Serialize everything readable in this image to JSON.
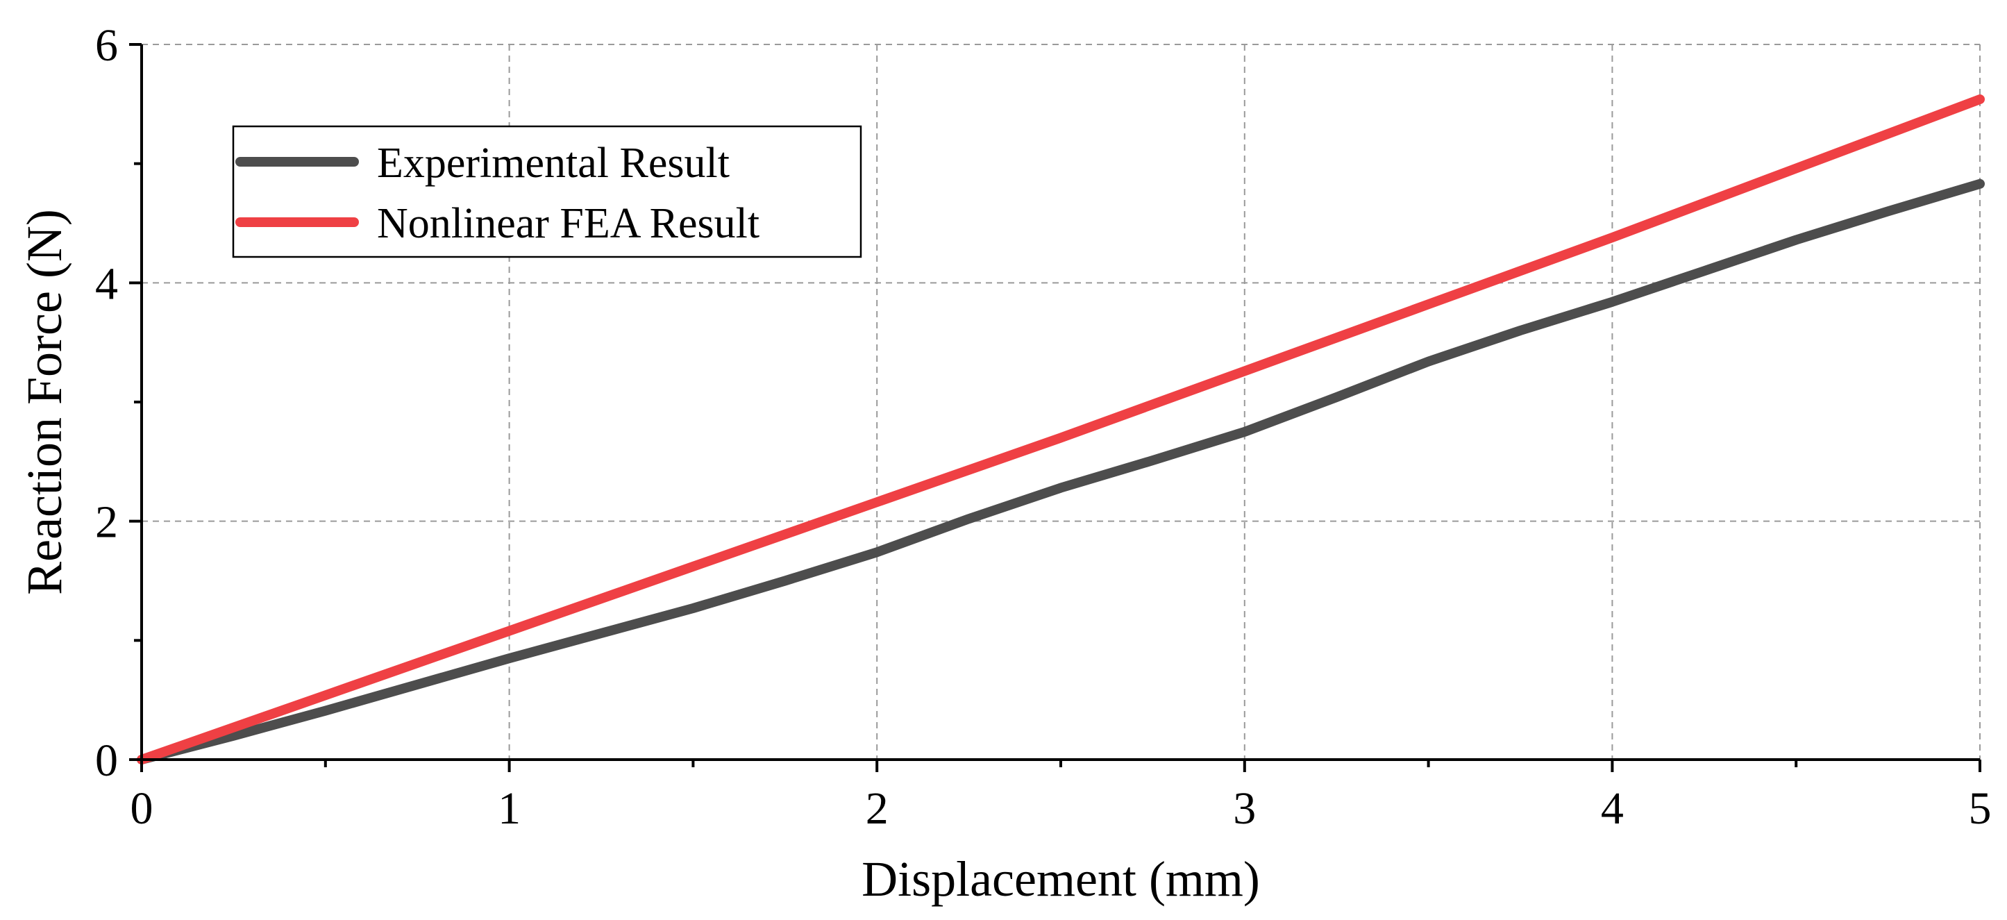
{
  "chart_data": {
    "type": "line",
    "title": "",
    "xlabel": "Displacement (mm)",
    "ylabel": "Reaction Force (N)",
    "xlim": [
      0,
      5
    ],
    "ylim": [
      0,
      6
    ],
    "x_ticks": [
      0,
      1,
      2,
      3,
      4,
      5
    ],
    "x_tick_labels": [
      "0",
      "1",
      "2",
      "3",
      "4",
      "5"
    ],
    "y_ticks": [
      0,
      2,
      4,
      6
    ],
    "y_tick_labels": [
      "0",
      "2",
      "4",
      "6"
    ],
    "grid": true,
    "legend_position": "top-left",
    "series": [
      {
        "name": "Experimental Result",
        "color": "#4d4d4d",
        "x": [
          0,
          0.25,
          0.5,
          0.75,
          1.0,
          1.25,
          1.5,
          1.75,
          2.0,
          2.25,
          2.5,
          2.75,
          3.0,
          3.25,
          3.5,
          3.75,
          4.0,
          4.25,
          4.5,
          4.75,
          5.0
        ],
        "y": [
          0,
          0.2,
          0.41,
          0.63,
          0.85,
          1.06,
          1.27,
          1.5,
          1.74,
          2.02,
          2.28,
          2.51,
          2.75,
          3.04,
          3.34,
          3.6,
          3.84,
          4.1,
          4.36,
          4.6,
          4.83
        ]
      },
      {
        "name": "Nonlinear FEA Result",
        "color": "#ef4044",
        "x": [
          0,
          0.5,
          1.0,
          1.5,
          2.0,
          2.5,
          3.0,
          3.5,
          4.0,
          4.5,
          5.0
        ],
        "y": [
          0,
          0.54,
          1.08,
          1.62,
          2.16,
          2.7,
          3.26,
          3.82,
          4.38,
          4.96,
          5.54
        ]
      }
    ]
  }
}
